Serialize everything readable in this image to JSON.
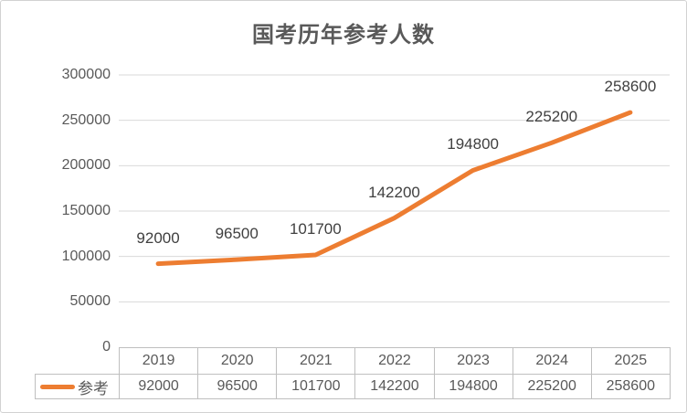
{
  "chart_data": {
    "type": "line",
    "title": "国考历年参考人数",
    "categories": [
      "2019",
      "2020",
      "2021",
      "2022",
      "2023",
      "2024",
      "2025"
    ],
    "series": [
      {
        "name": "参考",
        "values": [
          92000,
          96500,
          101700,
          142200,
          194800,
          225200,
          258600
        ]
      }
    ],
    "data_labels": [
      "92000",
      "96500",
      "101700",
      "142200",
      "194800",
      "225200",
      "258600"
    ],
    "xlabel": "",
    "ylabel": "",
    "ylim": [
      0,
      300000
    ],
    "ytick_step": 50000,
    "yticks": [
      "300000",
      "250000",
      "200000",
      "150000",
      "100000",
      "50000",
      "0"
    ],
    "grid": "horizontal",
    "legend_position": "table-left",
    "colors": {
      "line": "#ED7D31",
      "gridline": "#D9D9D9",
      "axis_text": "#595959",
      "data_label_text": "#404040",
      "title_text": "#595959",
      "table_border": "#BFBFBF"
    }
  }
}
